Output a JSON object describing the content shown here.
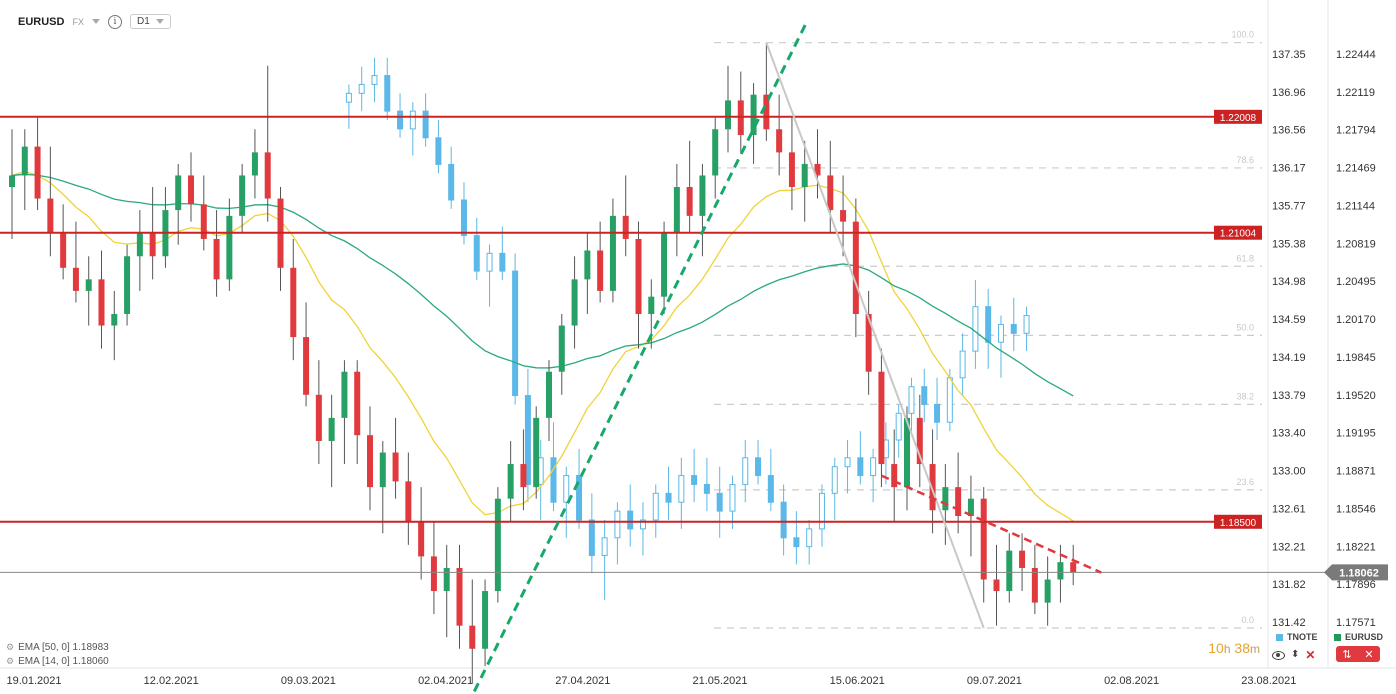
{
  "header": {
    "symbol": "EURUSD",
    "exchange": "FX",
    "info_glyph": "i",
    "timeframe": "D1"
  },
  "indicators": {
    "ema50": "EMA [50, 0] 1.18983",
    "ema14": "EMA [14, 0] 1.18060",
    "gear_glyph": "⚙"
  },
  "timer": {
    "hours": "10",
    "h": "h",
    "minutes": "38",
    "m": "m"
  },
  "series_keys": [
    {
      "name": "TNOTE",
      "color": "#5bb8e8"
    },
    {
      "name": "EURUSD",
      "color": "#1f9a5a"
    }
  ],
  "colors": {
    "up": "#26a065",
    "down": "#e03a3e",
    "tnote": "#5bb8e8",
    "ema14": "#f0d33a",
    "ema50": "#2aaa7a",
    "level": "#cc2222",
    "fib": "#cccccc",
    "trend_green": "#17a86a",
    "trend_red": "#e03a3e"
  },
  "chart_data": {
    "type": "candlestick",
    "x_ticks": [
      "19.01.2021",
      "12.02.2021",
      "09.03.2021",
      "02.04.2021",
      "27.04.2021",
      "21.05.2021",
      "15.06.2021",
      "09.07.2021",
      "02.08.2021",
      "23.08.2021"
    ],
    "y_left_ticks": [
      "137.35",
      "136.96",
      "136.56",
      "136.17",
      "135.77",
      "135.38",
      "134.98",
      "134.59",
      "134.19",
      "133.79",
      "133.40",
      "133.00",
      "132.61",
      "132.21",
      "131.82",
      "131.42"
    ],
    "y_right_ticks": [
      "1.22444",
      "1.22119",
      "1.21794",
      "1.21469",
      "1.21144",
      "1.20819",
      "1.20495",
      "1.20170",
      "1.19845",
      "1.19520",
      "1.19195",
      "1.18871",
      "1.18546",
      "1.18221",
      "1.17896",
      "1.17571"
    ],
    "y_range": [
      1.1732,
      1.2276
    ],
    "levels": [
      {
        "label": "1.22008",
        "value": 1.22008
      },
      {
        "label": "1.21004",
        "value": 1.21004
      },
      {
        "label": "1.18500",
        "value": 1.185
      }
    ],
    "current_price": {
      "label": "1.18062",
      "value": 1.18062
    },
    "fib_labels": [
      "100.0",
      "78.6",
      "61.8",
      "50.0",
      "38.2",
      "23.6",
      "0.0"
    ],
    "fib_range": [
      1.1758,
      1.2265
    ],
    "eurusd": [
      [
        1.214,
        1.219,
        1.2095,
        1.215
      ],
      [
        1.215,
        1.219,
        1.212,
        1.2175
      ],
      [
        1.2175,
        1.22,
        1.212,
        1.213
      ],
      [
        1.213,
        1.2175,
        1.208,
        1.21
      ],
      [
        1.21,
        1.2125,
        1.206,
        1.207
      ],
      [
        1.207,
        1.211,
        1.204,
        1.205
      ],
      [
        1.205,
        1.208,
        1.202,
        1.206
      ],
      [
        1.206,
        1.2085,
        1.2,
        1.202
      ],
      [
        1.202,
        1.205,
        1.199,
        1.203
      ],
      [
        1.203,
        1.209,
        1.202,
        1.208
      ],
      [
        1.208,
        1.212,
        1.205,
        1.21
      ],
      [
        1.21,
        1.214,
        1.206,
        1.208
      ],
      [
        1.208,
        1.214,
        1.207,
        1.212
      ],
      [
        1.212,
        1.216,
        1.209,
        1.215
      ],
      [
        1.215,
        1.217,
        1.211,
        1.2125
      ],
      [
        1.2125,
        1.215,
        1.2085,
        1.2095
      ],
      [
        1.2095,
        1.212,
        1.2045,
        1.206
      ],
      [
        1.206,
        1.213,
        1.205,
        1.2115
      ],
      [
        1.2115,
        1.216,
        1.21,
        1.215
      ],
      [
        1.215,
        1.219,
        1.213,
        1.217
      ],
      [
        1.217,
        1.2245,
        1.211,
        1.213
      ],
      [
        1.213,
        1.214,
        1.205,
        1.207
      ],
      [
        1.207,
        1.2095,
        1.199,
        1.201
      ],
      [
        1.201,
        1.204,
        1.195,
        1.196
      ],
      [
        1.196,
        1.199,
        1.19,
        1.192
      ],
      [
        1.192,
        1.196,
        1.188,
        1.194
      ],
      [
        1.194,
        1.199,
        1.19,
        1.198
      ],
      [
        1.198,
        1.199,
        1.19,
        1.1925
      ],
      [
        1.1925,
        1.195,
        1.186,
        1.188
      ],
      [
        1.188,
        1.192,
        1.184,
        1.191
      ],
      [
        1.191,
        1.194,
        1.187,
        1.1885
      ],
      [
        1.1885,
        1.191,
        1.183,
        1.185
      ],
      [
        1.185,
        1.188,
        1.18,
        1.182
      ],
      [
        1.182,
        1.185,
        1.177,
        1.179
      ],
      [
        1.179,
        1.183,
        1.175,
        1.181
      ],
      [
        1.181,
        1.183,
        1.174,
        1.176
      ],
      [
        1.176,
        1.18,
        1.171,
        1.174
      ],
      [
        1.174,
        1.18,
        1.1725,
        1.179
      ],
      [
        1.179,
        1.188,
        1.178,
        1.187
      ],
      [
        1.187,
        1.192,
        1.185,
        1.19
      ],
      [
        1.19,
        1.193,
        1.186,
        1.188
      ],
      [
        1.188,
        1.195,
        1.187,
        1.194
      ],
      [
        1.194,
        1.199,
        1.192,
        1.198
      ],
      [
        1.198,
        1.203,
        1.196,
        1.202
      ],
      [
        1.202,
        1.208,
        1.2,
        1.206
      ],
      [
        1.206,
        1.21,
        1.203,
        1.2085
      ],
      [
        1.2085,
        1.211,
        1.204,
        1.205
      ],
      [
        1.205,
        1.213,
        1.204,
        1.2115
      ],
      [
        1.2115,
        1.215,
        1.208,
        1.2095
      ],
      [
        1.2095,
        1.211,
        1.2,
        1.203
      ],
      [
        1.203,
        1.206,
        1.2,
        1.2045
      ],
      [
        1.2045,
        1.211,
        1.203,
        1.21
      ],
      [
        1.21,
        1.216,
        1.208,
        1.214
      ],
      [
        1.214,
        1.218,
        1.21,
        1.2115
      ],
      [
        1.2115,
        1.216,
        1.208,
        1.215
      ],
      [
        1.215,
        1.22,
        1.213,
        1.219
      ],
      [
        1.219,
        1.2245,
        1.217,
        1.2215
      ],
      [
        1.2215,
        1.224,
        1.217,
        1.2185
      ],
      [
        1.2185,
        1.223,
        1.216,
        1.222
      ],
      [
        1.222,
        1.2265,
        1.218,
        1.219
      ],
      [
        1.219,
        1.222,
        1.215,
        1.217
      ],
      [
        1.217,
        1.22,
        1.212,
        1.214
      ],
      [
        1.214,
        1.218,
        1.211,
        1.216
      ],
      [
        1.216,
        1.219,
        1.213,
        1.215
      ],
      [
        1.215,
        1.218,
        1.21,
        1.212
      ],
      [
        1.212,
        1.215,
        1.208,
        1.211
      ],
      [
        1.211,
        1.213,
        1.201,
        1.203
      ],
      [
        1.203,
        1.205,
        1.196,
        1.198
      ],
      [
        1.198,
        1.2,
        1.188,
        1.19
      ],
      [
        1.19,
        1.193,
        1.185,
        1.188
      ],
      [
        1.188,
        1.195,
        1.186,
        1.194
      ],
      [
        1.194,
        1.196,
        1.188,
        1.19
      ],
      [
        1.19,
        1.193,
        1.184,
        1.186
      ],
      [
        1.186,
        1.19,
        1.183,
        1.188
      ],
      [
        1.188,
        1.191,
        1.184,
        1.1855
      ],
      [
        1.1855,
        1.189,
        1.182,
        1.187
      ],
      [
        1.187,
        1.188,
        1.178,
        1.18
      ],
      [
        1.18,
        1.183,
        1.176,
        1.179
      ],
      [
        1.179,
        1.184,
        1.178,
        1.1825
      ],
      [
        1.1825,
        1.184,
        1.179,
        1.181
      ],
      [
        1.181,
        1.183,
        1.177,
        1.178
      ],
      [
        1.178,
        1.182,
        1.176,
        1.18
      ],
      [
        1.18,
        1.183,
        1.178,
        1.1815
      ],
      [
        1.1815,
        1.183,
        1.1795,
        1.1806
      ]
    ],
    "tnote": [
      [
        136.9,
        137.1,
        136.6,
        137.0
      ],
      [
        137.0,
        137.3,
        136.8,
        137.1
      ],
      [
        137.1,
        137.4,
        136.9,
        137.2
      ],
      [
        137.2,
        137.4,
        136.7,
        136.8
      ],
      [
        136.8,
        137.0,
        136.5,
        136.6
      ],
      [
        136.6,
        136.9,
        136.3,
        136.8
      ],
      [
        136.8,
        137.0,
        136.4,
        136.5
      ],
      [
        136.5,
        136.7,
        136.1,
        136.2
      ],
      [
        136.2,
        136.4,
        135.7,
        135.8
      ],
      [
        135.8,
        136.0,
        135.3,
        135.4
      ],
      [
        135.4,
        135.6,
        134.9,
        135.0
      ],
      [
        135.0,
        135.3,
        134.6,
        135.2
      ],
      [
        135.2,
        135.5,
        134.9,
        135.0
      ],
      [
        135.0,
        135.2,
        133.5,
        133.6
      ],
      [
        133.6,
        133.9,
        132.4,
        132.6
      ],
      [
        132.6,
        133.1,
        132.2,
        132.9
      ],
      [
        132.9,
        133.3,
        132.3,
        132.4
      ],
      [
        132.4,
        132.8,
        132.0,
        132.7
      ],
      [
        132.7,
        133.0,
        132.1,
        132.2
      ],
      [
        132.2,
        132.5,
        131.6,
        131.8
      ],
      [
        131.8,
        132.2,
        131.3,
        132.0
      ],
      [
        132.0,
        132.4,
        131.7,
        132.3
      ],
      [
        132.3,
        132.6,
        131.9,
        132.1
      ],
      [
        132.1,
        132.4,
        131.8,
        132.2
      ],
      [
        132.2,
        132.6,
        132.0,
        132.5
      ],
      [
        132.5,
        132.8,
        132.2,
        132.4
      ],
      [
        132.4,
        132.9,
        132.1,
        132.7
      ],
      [
        132.7,
        133.0,
        132.4,
        132.6
      ],
      [
        132.6,
        132.9,
        132.3,
        132.5
      ],
      [
        132.5,
        132.8,
        132.0,
        132.3
      ],
      [
        132.3,
        132.7,
        132.1,
        132.6
      ],
      [
        132.6,
        133.1,
        132.4,
        132.9
      ],
      [
        132.9,
        133.1,
        132.6,
        132.7
      ],
      [
        132.7,
        133.0,
        132.3,
        132.4
      ],
      [
        132.4,
        132.6,
        131.8,
        132.0
      ],
      [
        132.0,
        132.3,
        131.7,
        131.9
      ],
      [
        131.9,
        132.2,
        131.7,
        132.1
      ],
      [
        132.1,
        132.6,
        131.9,
        132.5
      ],
      [
        132.5,
        132.9,
        132.2,
        132.8
      ],
      [
        132.8,
        133.1,
        132.5,
        132.9
      ],
      [
        132.9,
        133.2,
        132.6,
        132.7
      ],
      [
        132.7,
        133.0,
        132.4,
        132.9
      ],
      [
        132.9,
        133.3,
        132.6,
        133.1
      ],
      [
        133.1,
        133.5,
        132.9,
        133.4
      ],
      [
        133.4,
        133.8,
        133.2,
        133.7
      ],
      [
        133.7,
        133.9,
        133.3,
        133.5
      ],
      [
        133.5,
        133.8,
        133.1,
        133.3
      ],
      [
        133.3,
        133.9,
        133.2,
        133.8
      ],
      [
        133.8,
        134.3,
        133.6,
        134.1
      ],
      [
        134.1,
        134.9,
        133.9,
        134.6
      ],
      [
        134.6,
        134.8,
        133.9,
        134.2
      ],
      [
        134.2,
        134.5,
        133.8,
        134.4
      ],
      [
        134.4,
        134.7,
        134.1,
        134.3
      ],
      [
        134.3,
        134.6,
        134.1,
        134.5
      ]
    ],
    "tnote_start": 26
  }
}
